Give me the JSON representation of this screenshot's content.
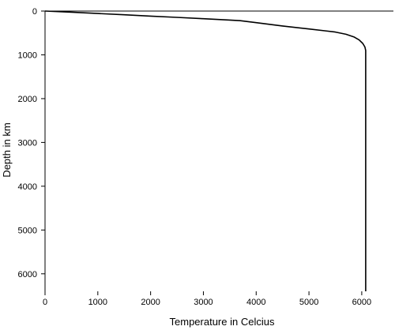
{
  "chart_data": {
    "type": "line",
    "xlabel": "Temperature in Celcius",
    "ylabel": "Depth in km",
    "xlim": [
      0,
      6600
    ],
    "ylim": [
      0,
      6400
    ],
    "y_inverted": true,
    "x_ticks": [
      0,
      1000,
      2000,
      3000,
      4000,
      5000,
      6000
    ],
    "y_ticks": [
      0,
      1000,
      2000,
      3000,
      4000,
      5000,
      6000
    ],
    "grid": false,
    "legend": "none",
    "line_color": "#000000",
    "series": [
      {
        "x": [
          0,
          500,
          1000,
          1500,
          2000,
          2500,
          3000,
          3500,
          3700,
          4000,
          4500,
          5000,
          5300,
          5500,
          5700,
          5850,
          5950,
          6020,
          6060,
          6075,
          6075
        ],
        "y": [
          0,
          25,
          55,
          85,
          115,
          145,
          175,
          205,
          220,
          265,
          340,
          410,
          450,
          480,
          530,
          590,
          660,
          740,
          820,
          900,
          6400
        ]
      }
    ]
  }
}
